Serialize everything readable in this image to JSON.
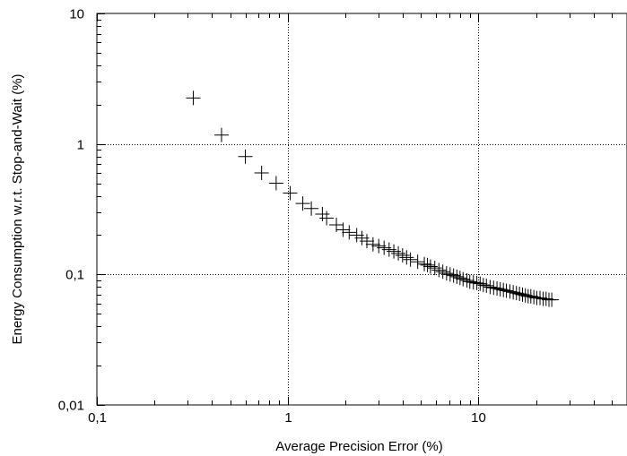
{
  "chart_data": {
    "type": "scatter",
    "title": "",
    "xlabel": "Average Precision Error (%)",
    "ylabel": "Energy Consumption w.r.t. Stop-and-Wait (%)",
    "x_scale": "log",
    "y_scale": "log",
    "xlim": [
      0.1,
      60
    ],
    "ylim": [
      0.01,
      10
    ],
    "grid": true,
    "legend": "none",
    "x_ticks": [
      {
        "value": 0.1,
        "label": "0,1"
      },
      {
        "value": 1,
        "label": "1"
      },
      {
        "value": 10,
        "label": "10"
      }
    ],
    "y_ticks": [
      {
        "value": 0.01,
        "label": "0,01"
      },
      {
        "value": 0.1,
        "label": "0,1"
      },
      {
        "value": 1,
        "label": "1"
      },
      {
        "value": 10,
        "label": "10"
      }
    ],
    "marker": "plus",
    "x": [
      0.32,
      0.45,
      0.6,
      0.73,
      0.87,
      1.03,
      1.2,
      1.33,
      1.52,
      1.6,
      1.8,
      1.95,
      2.1,
      2.3,
      2.45,
      2.6,
      2.8,
      3.0,
      3.2,
      3.4,
      3.6,
      3.8,
      4.0,
      4.2,
      4.4,
      4.8,
      5.2,
      5.4,
      5.6,
      5.9,
      6.2,
      6.5,
      6.8,
      7.1,
      7.4,
      7.7,
      8.0,
      8.3,
      8.7,
      9.0,
      9.4,
      9.8,
      10.2,
      10.6,
      11.0,
      11.5,
      12.0,
      12.5,
      13.0,
      13.5,
      14.0,
      14.6,
      15.2,
      15.8,
      16.4,
      17.0,
      17.6,
      18.2,
      18.8,
      19.5,
      20.2,
      21.0,
      21.8,
      22.6,
      23.4,
      24.2
    ],
    "y": [
      2.25,
      1.17,
      0.8,
      0.6,
      0.5,
      0.42,
      0.35,
      0.32,
      0.29,
      0.27,
      0.24,
      0.22,
      0.21,
      0.2,
      0.19,
      0.18,
      0.17,
      0.165,
      0.16,
      0.155,
      0.15,
      0.145,
      0.14,
      0.135,
      0.13,
      0.125,
      0.12,
      0.118,
      0.115,
      0.112,
      0.108,
      0.105,
      0.102,
      0.1,
      0.098,
      0.096,
      0.094,
      0.092,
      0.09,
      0.088,
      0.087,
      0.086,
      0.085,
      0.083,
      0.082,
      0.08,
      0.079,
      0.078,
      0.077,
      0.076,
      0.075,
      0.074,
      0.073,
      0.072,
      0.071,
      0.07,
      0.069,
      0.068,
      0.068,
      0.067,
      0.066,
      0.066,
      0.065,
      0.065,
      0.064,
      0.064
    ]
  }
}
